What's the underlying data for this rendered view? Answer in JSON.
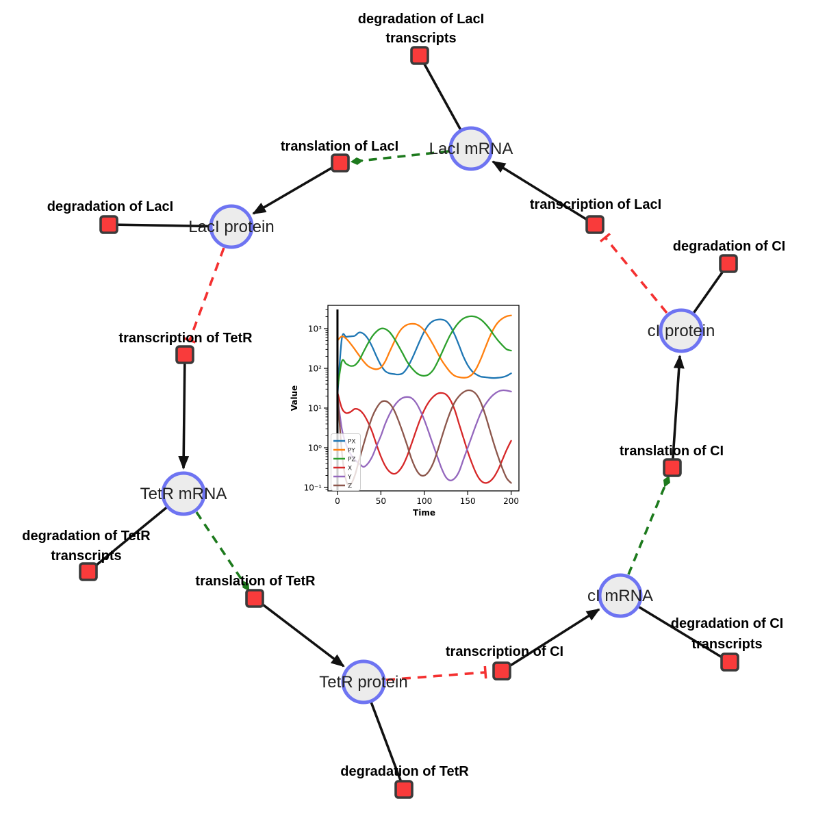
{
  "species": {
    "laci_mrna": "LacI mRNA",
    "laci_protein": "LacI protein",
    "tetr_mrna": "TetR mRNA",
    "tetr_protein": "TetR protein",
    "ci_mrna": "cI mRNA",
    "ci_protein": "cI protein"
  },
  "reactions": {
    "deg_laci_tx": {
      "l1": "degradation of LacI",
      "l2": "transcripts"
    },
    "translation_laci": {
      "l1": "translation of LacI"
    },
    "deg_laci": {
      "l1": "degradation of LacI"
    },
    "transcription_tetr": {
      "l1": "transcription of TetR"
    },
    "deg_tetr_tx": {
      "l1": "degradation of TetR",
      "l2": "transcripts"
    },
    "translation_tetr": {
      "l1": "translation of TetR"
    },
    "deg_tetr": {
      "l1": "degradation of TetR"
    },
    "transcription_ci": {
      "l1": "transcription of CI"
    },
    "deg_ci_tx": {
      "l1": "degradation of CI",
      "l2": "transcripts"
    },
    "translation_ci": {
      "l1": "translation of CI"
    },
    "deg_ci": {
      "l1": "degradation of CI"
    },
    "transcription_laci": {
      "l1": "transcription of LacI"
    }
  },
  "colors": {
    "species_fill": "#ececec",
    "species_stroke": "#6e74f2",
    "reaction_fill": "#f93b3b",
    "reaction_stroke": "#3b3b3b",
    "edge_color": "#111111",
    "activation_color": "#1d7a1d",
    "inhibition_color": "#f43030"
  },
  "chart_data": {
    "type": "line",
    "title": "",
    "xlabel": "Time",
    "ylabel": "Value",
    "yscale": "log",
    "xlim": [
      -11,
      209
    ],
    "ylim": [
      0.082,
      3860
    ],
    "grid": false,
    "vline_x": 0,
    "x_ticks": [
      0,
      50,
      100,
      150,
      200
    ],
    "y_ticks": [
      {
        "value": 0.1,
        "label": "10⁻¹"
      },
      {
        "value": 1,
        "label": "10⁰"
      },
      {
        "value": 10,
        "label": "10¹"
      },
      {
        "value": 100,
        "label": "10²"
      },
      {
        "value": 1000,
        "label": "10³"
      }
    ],
    "legend_position": "lower left",
    "x": [
      0,
      5,
      10,
      15,
      20,
      25,
      30,
      35,
      40,
      45,
      50,
      55,
      60,
      65,
      70,
      75,
      80,
      85,
      90,
      95,
      100,
      105,
      110,
      115,
      120,
      125,
      130,
      135,
      140,
      145,
      150,
      155,
      160,
      165,
      170,
      175,
      180,
      185,
      190,
      195,
      200
    ],
    "series": [
      {
        "name": "PX",
        "color": "#1f77b4",
        "values": [
          20,
          560,
          620,
          640,
          660,
          800,
          740,
          560,
          350,
          200,
          120,
          85,
          75,
          72,
          70,
          75,
          100,
          160,
          280,
          500,
          850,
          1250,
          1550,
          1680,
          1700,
          1550,
          1150,
          700,
          380,
          200,
          120,
          85,
          70,
          62,
          60,
          58,
          57,
          58,
          60,
          65,
          75
        ]
      },
      {
        "name": "PY",
        "color": "#ff7f0e",
        "values": [
          500,
          640,
          560,
          420,
          300,
          210,
          150,
          115,
          100,
          95,
          105,
          150,
          260,
          450,
          750,
          1050,
          1250,
          1320,
          1300,
          1150,
          900,
          620,
          400,
          250,
          160,
          110,
          80,
          65,
          60,
          58,
          60,
          70,
          100,
          170,
          320,
          600,
          1000,
          1450,
          1800,
          2050,
          2150
        ]
      },
      {
        "name": "PZ",
        "color": "#2ca02c",
        "values": [
          30,
          150,
          130,
          115,
          120,
          160,
          260,
          420,
          640,
          850,
          1000,
          980,
          820,
          580,
          380,
          240,
          150,
          105,
          80,
          68,
          65,
          70,
          90,
          140,
          240,
          420,
          700,
          1050,
          1450,
          1800,
          2000,
          2050,
          1950,
          1700,
          1350,
          1000,
          700,
          500,
          380,
          300,
          280
        ]
      },
      {
        "name": "X",
        "color": "#d62728",
        "values": [
          25,
          10,
          7.5,
          8,
          9.5,
          9,
          7,
          4.5,
          2.5,
          1.2,
          0.6,
          0.35,
          0.25,
          0.22,
          0.25,
          0.35,
          0.6,
          1.2,
          2.5,
          5,
          9,
          14,
          19,
          23,
          24,
          22,
          16,
          9,
          4,
          1.8,
          0.8,
          0.4,
          0.22,
          0.15,
          0.13,
          0.14,
          0.18,
          0.28,
          0.5,
          0.9,
          1.5
        ]
      },
      {
        "name": "Y",
        "color": "#9467bd",
        "values": [
          20,
          3,
          1.2,
          0.7,
          0.5,
          0.4,
          0.33,
          0.4,
          0.6,
          1.1,
          2,
          4,
          7,
          11,
          15,
          18,
          19,
          18,
          14,
          9,
          5,
          2.5,
          1.2,
          0.6,
          0.3,
          0.18,
          0.15,
          0.17,
          0.25,
          0.5,
          1,
          2,
          4,
          7.5,
          12,
          17,
          22,
          26,
          28,
          27.5,
          26
        ]
      },
      {
        "name": "Z",
        "color": "#8c564b",
        "values": [
          25,
          0.8,
          0.15,
          0.12,
          0.2,
          0.5,
          1.2,
          2.8,
          6,
          10,
          14,
          15,
          13,
          9,
          5,
          2.5,
          1.2,
          0.55,
          0.3,
          0.21,
          0.2,
          0.25,
          0.4,
          0.8,
          1.8,
          4,
          8,
          14,
          20,
          25,
          28,
          27,
          22,
          14,
          7,
          3,
          1.3,
          0.6,
          0.3,
          0.17,
          0.13
        ]
      }
    ]
  }
}
